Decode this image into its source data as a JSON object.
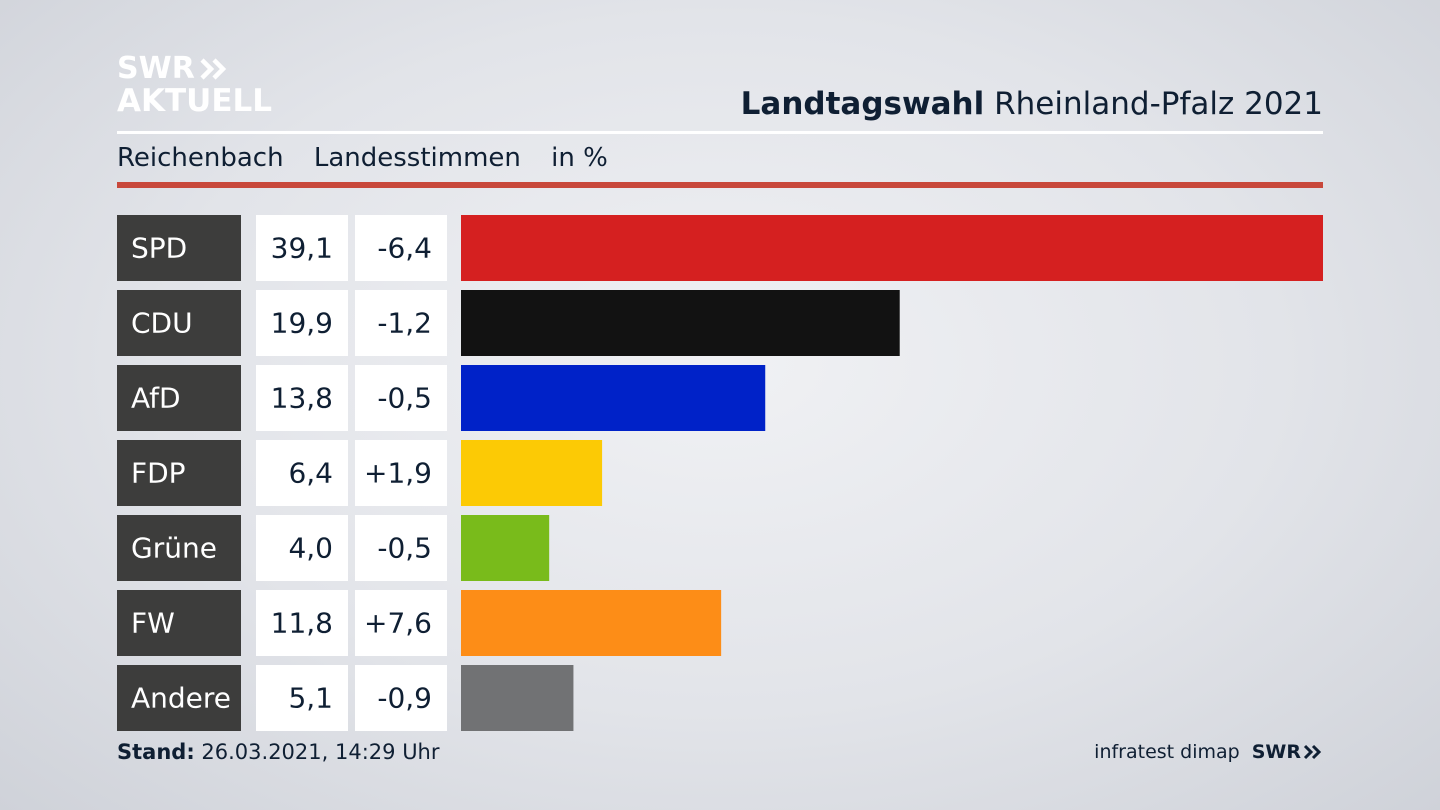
{
  "logo": {
    "line1": "SWR",
    "line2": "AKTUELL"
  },
  "header": {
    "title_bold": "Landtagswahl",
    "title_regular": "Rheinland-Pfalz 2021"
  },
  "subheader": {
    "location": "Reichenbach",
    "vote_type": "Landesstimmen",
    "unit": "in %"
  },
  "footer": {
    "stand_label": "Stand:",
    "stand_value": "26.03.2021, 14:29 Uhr",
    "source": "infratest dimap",
    "brand": "SWR"
  },
  "chart_data": {
    "type": "bar",
    "orientation": "horizontal",
    "categories": [
      "SPD",
      "CDU",
      "AfD",
      "FDP",
      "Grüne",
      "FW",
      "Andere"
    ],
    "values": [
      39.1,
      19.9,
      13.8,
      6.4,
      4.0,
      11.8,
      5.1
    ],
    "value_labels": [
      "39,1",
      "19,9",
      "13,8",
      "6,4",
      "4,0",
      "11,8",
      "5,1"
    ],
    "changes": [
      -6.4,
      -1.2,
      -0.5,
      1.9,
      -0.5,
      7.6,
      -0.9
    ],
    "change_labels": [
      "-6,4",
      "-1,2",
      "-0,5",
      "+1,9",
      "-0,5",
      "+7,6",
      "-0,9"
    ],
    "colors": [
      "#d52020",
      "#121212",
      "#0022c8",
      "#fcca05",
      "#79bb1b",
      "#fd8d17",
      "#717274"
    ],
    "xlim": [
      0,
      39.1
    ],
    "grid": false,
    "legend": "none"
  }
}
